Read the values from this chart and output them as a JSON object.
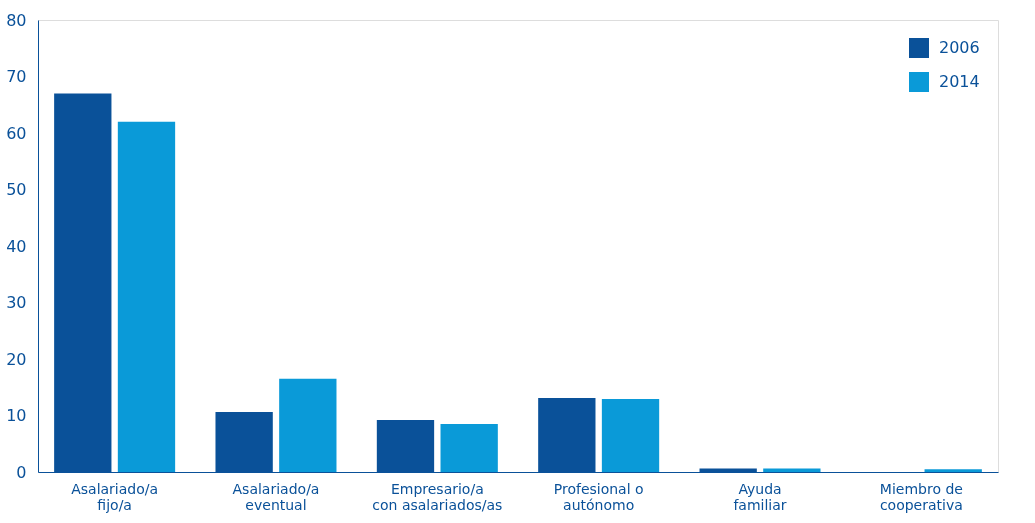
{
  "chart_data": {
    "type": "bar",
    "categories": [
      "Asalariado/a\nfijo/a",
      "Asalariado/a\neventual",
      "Empresario/a\ncon asalariados/as",
      "Profesional o\nautónomo",
      "Ayuda\nfamiliar",
      "Miembro de\ncooperativa"
    ],
    "series": [
      {
        "name": "2006",
        "color": "#0a5199",
        "values": [
          67,
          10.6,
          9.2,
          13.1,
          0.6,
          null
        ]
      },
      {
        "name": "2014",
        "color": "#0a9ad8",
        "values": [
          62,
          16.5,
          8.5,
          12.9,
          0.6,
          0.5
        ]
      }
    ],
    "ylim": [
      0,
      80
    ],
    "yticks": [
      0,
      10,
      20,
      30,
      40,
      50,
      60,
      70,
      80
    ],
    "grid": false,
    "legend": "top right"
  }
}
